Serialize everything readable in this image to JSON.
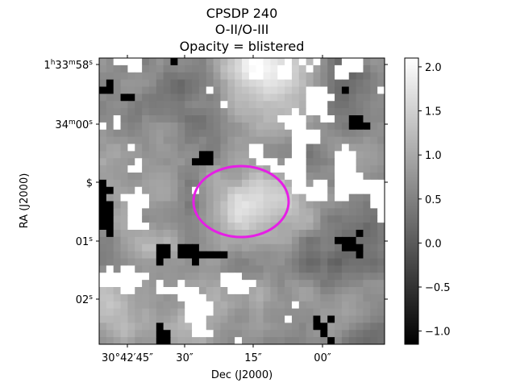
{
  "chart_data": {
    "type": "heatmap",
    "title_lines": [
      "CPSDP 240",
      "O-II/O-III",
      "Opacity = blistered"
    ],
    "xlabel": "Dec (J2000)",
    "ylabel": "RA (J2000)",
    "x_ticks": [
      {
        "label_parts": [
          "30°42′45″"
        ]
      },
      {
        "label_parts": [
          "30″"
        ]
      },
      {
        "label_parts": [
          "15″"
        ]
      },
      {
        "label_parts": [
          "00″"
        ]
      }
    ],
    "y_ticks": [
      {
        "parts": [
          {
            "t": "1"
          },
          {
            "t": "h",
            "sup": true
          },
          {
            "t": "33"
          },
          {
            "t": "m",
            "sup": true
          },
          {
            "t": "58"
          },
          {
            "t": "s",
            "sup": true
          }
        ]
      },
      {
        "parts": [
          {
            "t": "34"
          },
          {
            "t": "m",
            "sup": true
          },
          {
            "t": "00"
          },
          {
            "t": "s",
            "sup": true
          }
        ]
      },
      {
        "parts": [
          {
            "t": "$"
          }
        ]
      },
      {
        "parts": [
          {
            "t": "01"
          },
          {
            "t": "s",
            "sup": true
          }
        ]
      },
      {
        "parts": [
          {
            "t": "02"
          },
          {
            "t": "s",
            "sup": true
          }
        ]
      }
    ],
    "colorbar": {
      "cmap": "gray",
      "vmin": -1.15,
      "vmax": 2.1,
      "ticks": [
        -1.0,
        -0.5,
        0.0,
        0.5,
        1.0,
        1.5,
        2.0
      ],
      "tick_labels": [
        "−1.0",
        "−0.5",
        "0.0",
        "0.5",
        "1.0",
        "1.5",
        "2.0"
      ]
    },
    "image": {
      "description_free": true,
      "mask_value_bright": 2.1,
      "mask_value_dark": -1.15
    },
    "ellipse": {
      "color": "#e61ee6",
      "center_frac": [
        0.5,
        0.5
      ]
    }
  }
}
